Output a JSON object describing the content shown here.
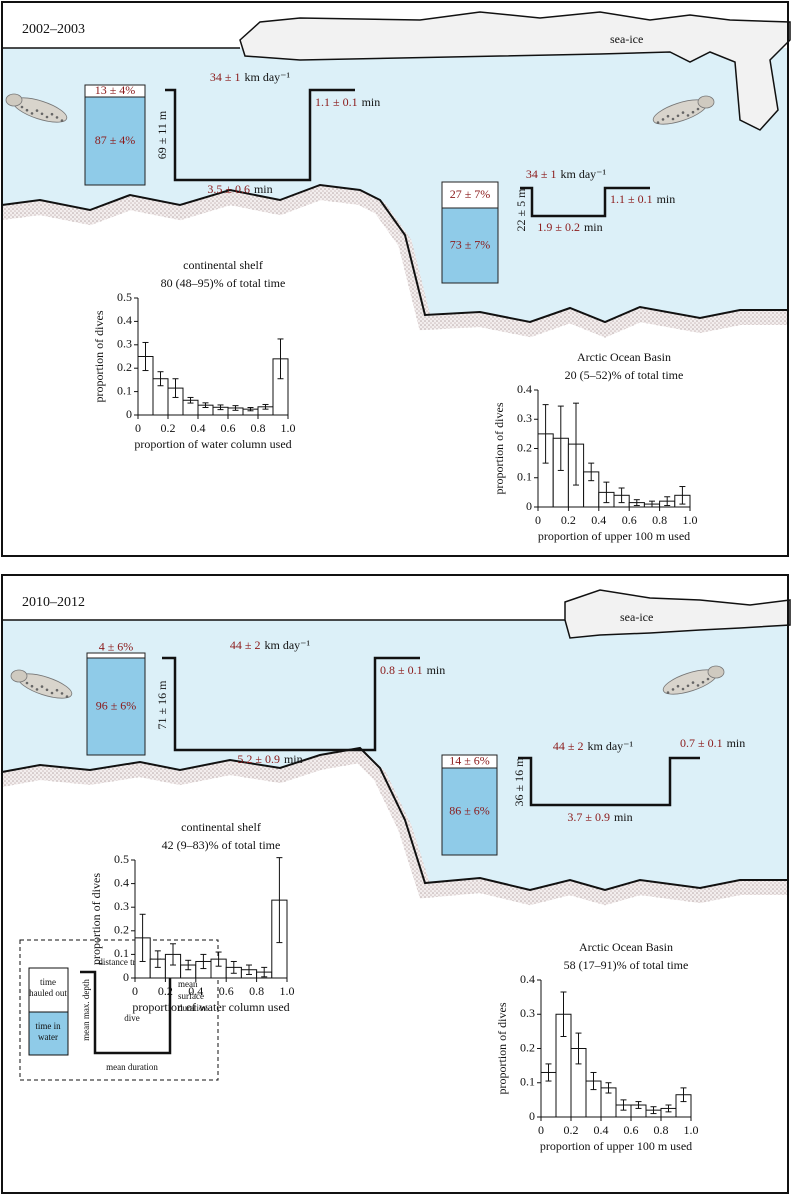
{
  "panels": [
    {
      "period": "2002–2003",
      "sea_ice": "sea-ice",
      "shelf": {
        "hauled_out": "13 ± 4%",
        "in_water": "87 ± 4%",
        "distance": "34 ± 1",
        "distance_unit": "km day⁻¹",
        "depth": "69 ± 11 m",
        "duration": "3.5 ± 0.6",
        "surface": "1.1 ± 0.1"
      },
      "basin": {
        "hauled_out": "27 ± 7%",
        "in_water": "73 ± 7%",
        "distance": "34 ± 1",
        "distance_unit": "km day⁻¹",
        "depth": "22 ± 5 m",
        "duration": "1.9 ± 0.2",
        "surface": "1.1 ± 0.1"
      }
    },
    {
      "period": "2010–2012",
      "sea_ice": "sea-ice",
      "shelf": {
        "hauled_out": "4 ± 6%",
        "in_water": "96 ± 6%",
        "distance": "44 ± 2",
        "distance_unit": "km day⁻¹",
        "depth": "71 ± 16 m",
        "duration": "5.2 ± 0.9",
        "surface": "0.8 ± 0.1"
      },
      "basin": {
        "hauled_out": "14 ± 6%",
        "in_water": "86 ± 6%",
        "distance": "44 ± 2",
        "distance_unit": "km day⁻¹",
        "depth": "36 ± 16 m",
        "duration": "3.7 ± 0.9",
        "surface": "0.7 ± 0.1"
      }
    }
  ],
  "time_unit": "min",
  "legend": {
    "hauled_out": [
      "time",
      "hauled out"
    ],
    "in_water": [
      "time in",
      "water"
    ],
    "distance": "distance travelled",
    "depth": "mean max. depth",
    "dive": "dive",
    "duration": "mean duration",
    "surface": [
      "mean",
      "surface",
      "duration"
    ]
  },
  "chart_data": [
    {
      "type": "histogram",
      "title": [
        "continental shelf",
        "80 (48–95)% of total time"
      ],
      "xlabel": "proportion of water column used",
      "ylabel": "proportion of dives",
      "bins": [
        0,
        0.1,
        0.2,
        0.3,
        0.4,
        0.5,
        0.6,
        0.7,
        0.8,
        0.9,
        1.0
      ],
      "values": [
        0.25,
        0.155,
        0.115,
        0.063,
        0.042,
        0.033,
        0.03,
        0.025,
        0.035,
        0.24
      ],
      "errors": [
        0.06,
        0.03,
        0.04,
        0.012,
        0.01,
        0.01,
        0.01,
        0.007,
        0.01,
        0.085
      ],
      "xlim": [
        0,
        1
      ],
      "ylim": [
        0,
        0.5
      ],
      "xticks": [
        0,
        0.2,
        0.4,
        0.6,
        0.8,
        {
          "value": 1,
          "label": "1.0"
        }
      ],
      "yticks": [
        0,
        0.1,
        0.2,
        0.3,
        0.4,
        0.5
      ],
      "color": "#ffffff"
    },
    {
      "type": "histogram",
      "title": [
        "Arctic Ocean Basin",
        "20 (5–52)% of total time"
      ],
      "xlabel": "proportion of upper 100 m used",
      "ylabel": "proportion of dives",
      "bins": [
        0,
        0.1,
        0.2,
        0.3,
        0.4,
        0.5,
        0.6,
        0.7,
        0.8,
        0.9,
        1.0
      ],
      "values": [
        0.25,
        0.235,
        0.215,
        0.12,
        0.05,
        0.04,
        0.015,
        0.01,
        0.02,
        0.04
      ],
      "errors": [
        0.1,
        0.11,
        0.14,
        0.03,
        0.035,
        0.025,
        0.01,
        0.01,
        0.015,
        0.03
      ],
      "xlim": [
        0,
        1
      ],
      "ylim": [
        0,
        0.4
      ],
      "xticks": [
        0,
        0.2,
        0.4,
        0.6,
        0.8,
        {
          "value": 1,
          "label": "1.0"
        }
      ],
      "yticks": [
        0,
        0.1,
        0.2,
        0.3,
        0.4
      ],
      "color": "#ffffff"
    },
    {
      "type": "histogram",
      "title": [
        "continental shelf",
        "42 (9–83)% of total time"
      ],
      "xlabel": "proportion of water column used",
      "ylabel": "proportion of dives",
      "bins": [
        0,
        0.1,
        0.2,
        0.3,
        0.4,
        0.5,
        0.6,
        0.7,
        0.8,
        0.9,
        1.0
      ],
      "values": [
        0.17,
        0.08,
        0.1,
        0.055,
        0.07,
        0.08,
        0.045,
        0.035,
        0.025,
        0.33
      ],
      "errors": [
        0.1,
        0.035,
        0.045,
        0.02,
        0.03,
        0.03,
        0.025,
        0.02,
        0.02,
        0.18
      ],
      "xlim": [
        0,
        1
      ],
      "ylim": [
        0,
        0.5
      ],
      "xticks": [
        0,
        0.2,
        0.4,
        0.6,
        0.8,
        {
          "value": 1,
          "label": "1.0"
        }
      ],
      "yticks": [
        0,
        0.1,
        0.2,
        0.3,
        0.4,
        0.5
      ],
      "color": "#ffffff"
    },
    {
      "type": "histogram",
      "title": [
        "Arctic Ocean Basin",
        "58 (17–91)% of total time"
      ],
      "xlabel": "proportion of upper 100 m used",
      "ylabel": "proportion of dives",
      "bins": [
        0,
        0.1,
        0.2,
        0.3,
        0.4,
        0.5,
        0.6,
        0.7,
        0.8,
        0.9,
        1.0
      ],
      "values": [
        0.13,
        0.3,
        0.2,
        0.105,
        0.085,
        0.035,
        0.035,
        0.02,
        0.025,
        0.065
      ],
      "errors": [
        0.025,
        0.065,
        0.045,
        0.025,
        0.015,
        0.015,
        0.01,
        0.01,
        0.01,
        0.02
      ],
      "xlim": [
        0,
        1
      ],
      "ylim": [
        0,
        0.4
      ],
      "xticks": [
        0,
        0.2,
        0.4,
        0.6,
        0.8,
        {
          "value": 1,
          "label": "1.0"
        }
      ],
      "yticks": [
        0,
        0.1,
        0.2,
        0.3,
        0.4
      ],
      "color": "#ffffff"
    }
  ]
}
